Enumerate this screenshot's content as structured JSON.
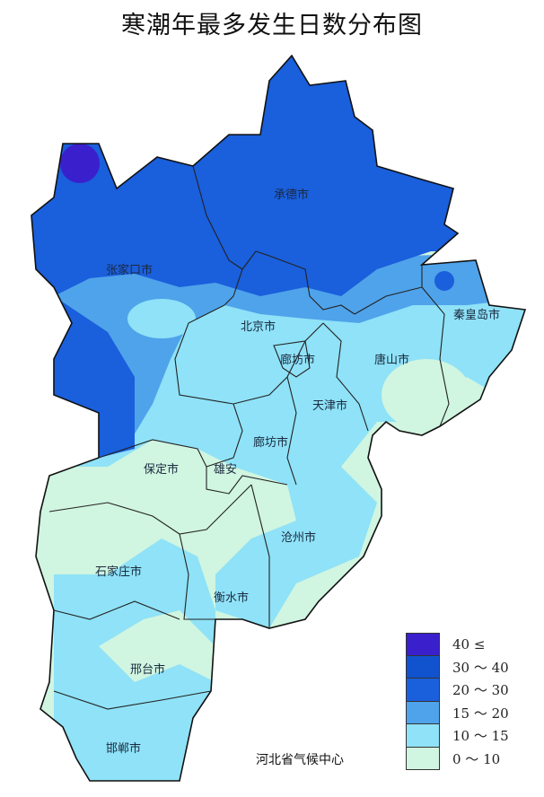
{
  "title": "寒潮年最多发生日数分布图",
  "credit": "河北省气候中心",
  "legend": [
    {
      "label": "40 ≤",
      "color": "#3a1fcc"
    },
    {
      "label": "30 ～ 40",
      "color": "#1153cf"
    },
    {
      "label": "20 ～ 30",
      "color": "#1a5fdc"
    },
    {
      "label": "15 ～ 20",
      "color": "#4fa3ea"
    },
    {
      "label": "10 ～ 15",
      "color": "#8fe2f7"
    },
    {
      "label": "0 ～ 10",
      "color": "#d0f5e0"
    }
  ],
  "cities": {
    "chengde": "承德市",
    "zhangjiakou": "张家口市",
    "beijing": "北京市",
    "langfang_north": "廊坊市",
    "tangshan": "唐山市",
    "qinhuangdao": "秦皇岛市",
    "tianjin": "天津市",
    "langfang": "廊坊市",
    "baoding": "保定市",
    "xiongan": "雄安",
    "cangzhou": "沧州市",
    "shijiazhuang": "石家庄市",
    "hengshui": "衡水市",
    "xingtai": "邢台市",
    "handan": "邯郸市"
  }
}
